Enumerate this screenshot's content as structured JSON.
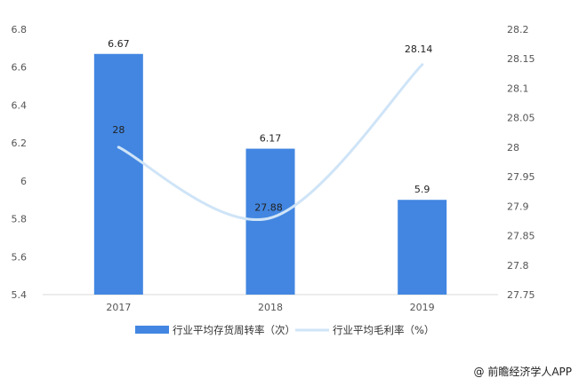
{
  "chart_data": {
    "type": "bar",
    "categories": [
      "2017",
      "2018",
      "2019"
    ],
    "series": [
      {
        "name": "行业平均存货周转率（次）",
        "type": "bar",
        "axis": "left",
        "values": [
          6.67,
          6.17,
          5.9
        ],
        "labels": [
          "6.67",
          "6.17",
          "5.9"
        ],
        "color": "#4286e1"
      },
      {
        "name": "行业平均毛利率（%）",
        "type": "line",
        "axis": "right",
        "values": [
          28,
          27.88,
          28.14
        ],
        "labels": [
          "28",
          "27.88",
          "28.14"
        ],
        "color": "#cfe4f7"
      }
    ],
    "y_left": {
      "ylim": [
        5.4,
        6.8
      ],
      "ticks": [
        5.4,
        5.6,
        5.8,
        6,
        6.2,
        6.4,
        6.6,
        6.8
      ],
      "tick_labels": [
        "5.4",
        "5.6",
        "5.8",
        "6",
        "6.2",
        "6.4",
        "6.6",
        "6.8"
      ]
    },
    "y_right": {
      "ylim": [
        27.75,
        28.2
      ],
      "ticks": [
        27.75,
        27.8,
        27.85,
        27.9,
        27.95,
        28,
        28.05,
        28.1,
        28.15,
        28.2
      ],
      "tick_labels": [
        "27.75",
        "27.8",
        "27.85",
        "27.9",
        "27.95",
        "28",
        "28.05",
        "28.1",
        "28.15",
        "28.2"
      ]
    },
    "grid": false,
    "legend_position": "bottom"
  },
  "watermark": "@ 前瞻经济学人APP"
}
